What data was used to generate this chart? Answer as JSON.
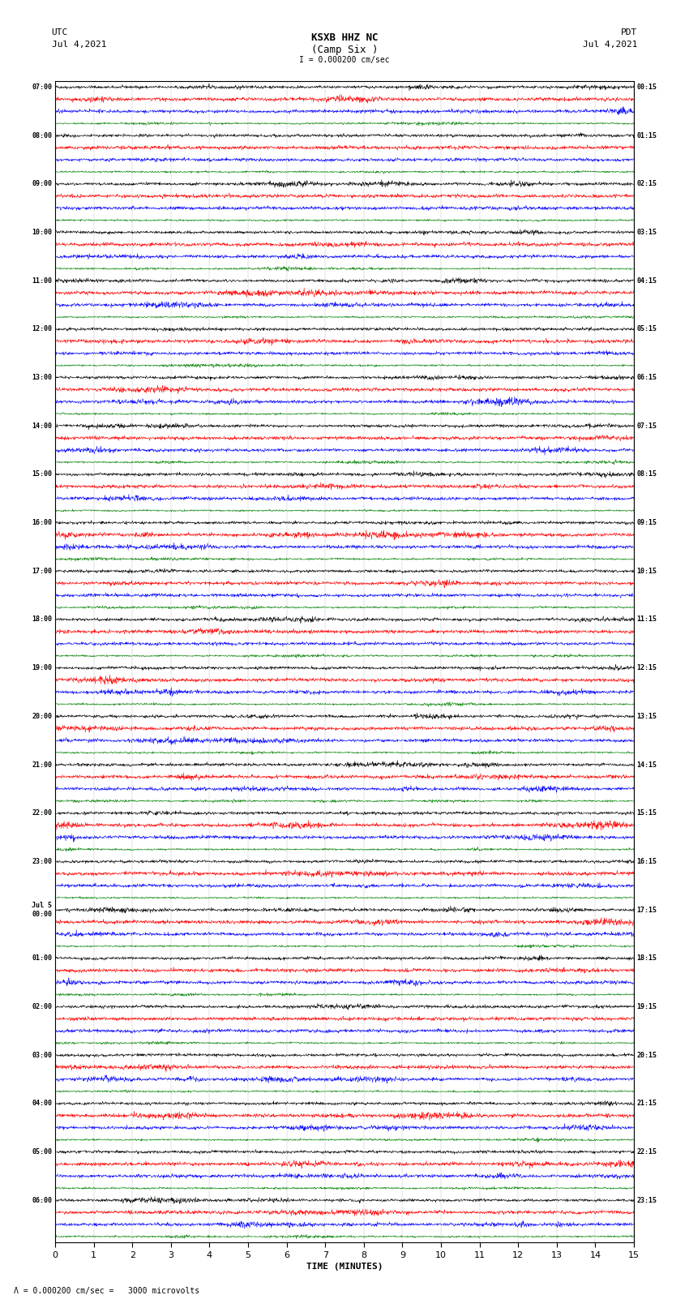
{
  "title_line1": "KSXB HHZ NC",
  "title_line2": "(Camp Six )",
  "scale_text": "I = 0.000200 cm/sec",
  "bottom_scale_text": "Λ = 0.000200 cm/sec =   3000 microvolts",
  "utc_label": "UTC",
  "utc_date": "Jul 4,2021",
  "pdt_label": "PDT",
  "pdt_date": "Jul 4,2021",
  "xlabel": "TIME (MINUTES)",
  "trace_colors": [
    "black",
    "red",
    "blue",
    "green"
  ],
  "bg_color": "white",
  "n_groups": 24,
  "n_sub": 4,
  "minutes_per_row": 15,
  "left_times": [
    "07:00",
    "08:00",
    "09:00",
    "10:00",
    "11:00",
    "12:00",
    "13:00",
    "14:00",
    "15:00",
    "16:00",
    "17:00",
    "18:00",
    "19:00",
    "20:00",
    "21:00",
    "22:00",
    "23:00",
    "Jul 5\n00:00",
    "01:00",
    "02:00",
    "03:00",
    "04:00",
    "05:00",
    "06:00"
  ],
  "right_times": [
    "00:15",
    "01:15",
    "02:15",
    "03:15",
    "04:15",
    "05:15",
    "06:15",
    "07:15",
    "08:15",
    "09:15",
    "10:15",
    "11:15",
    "12:15",
    "13:15",
    "14:15",
    "15:15",
    "16:15",
    "17:15",
    "18:15",
    "19:15",
    "20:15",
    "21:15",
    "22:15",
    "23:15"
  ],
  "tick_positions": [
    0,
    1,
    2,
    3,
    4,
    5,
    6,
    7,
    8,
    9,
    10,
    11,
    12,
    13,
    14,
    15
  ],
  "linewidth": 0.4,
  "amplitude_scale": 0.38
}
